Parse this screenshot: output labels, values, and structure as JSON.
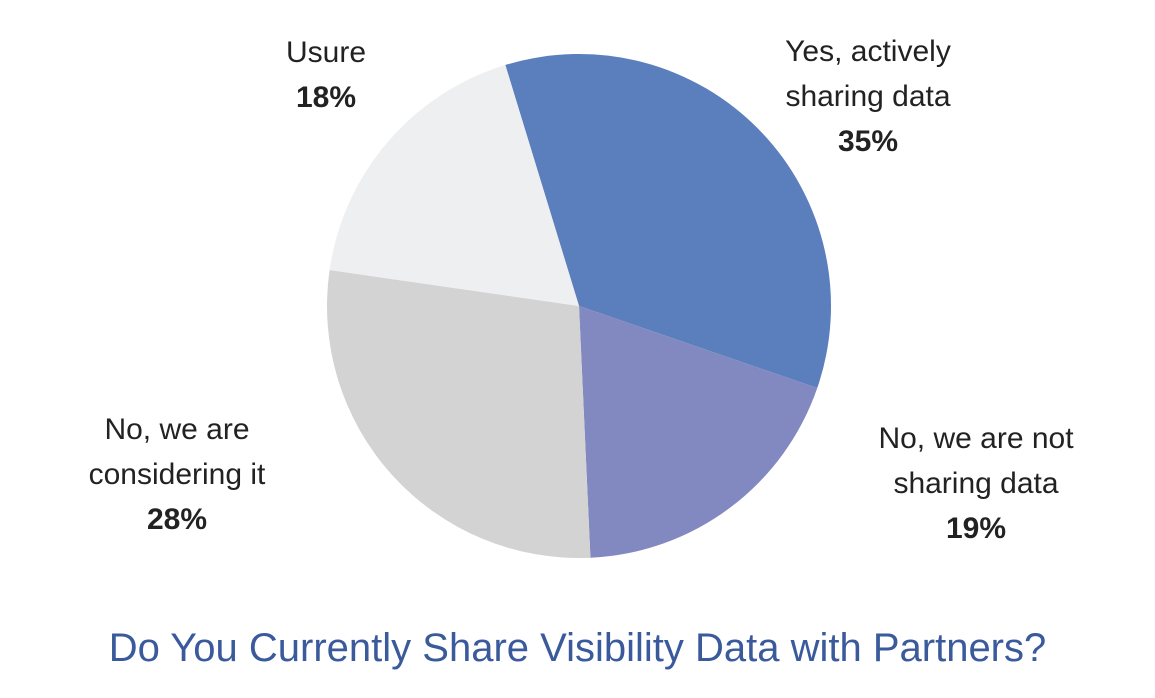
{
  "chart_data": {
    "type": "pie",
    "title": "Do You Currently Share Visibility Data with Partners?",
    "slices": [
      {
        "label_lines": [
          "Yes, actively",
          "sharing data"
        ],
        "value": 35,
        "value_label": "35%",
        "color": "#5b7fbd"
      },
      {
        "label_lines": [
          "No, we are not",
          "sharing data"
        ],
        "value": 19,
        "value_label": "19%",
        "color": "#8289c0"
      },
      {
        "label_lines": [
          "No, we are",
          "considering it"
        ],
        "value": 28,
        "value_label": "28%",
        "color": "#d3d3d4"
      },
      {
        "label_lines": [
          "Usure"
        ],
        "value": 18,
        "value_label": "18%",
        "color": "#eeeff1"
      }
    ]
  }
}
